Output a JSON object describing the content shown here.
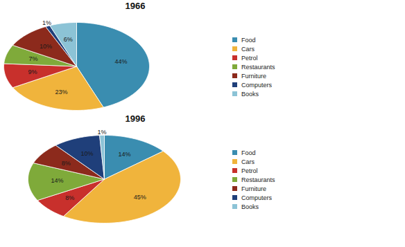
{
  "chart_data": [
    {
      "type": "pie",
      "title": "1966",
      "categories": [
        "Food",
        "Cars",
        "Petrol",
        "Restaurants",
        "Furniture",
        "Computers",
        "Books"
      ],
      "values": [
        44,
        23,
        9,
        7,
        10,
        1,
        6
      ],
      "value_labels": [
        "44%",
        "23%",
        "9%",
        "7%",
        "10%",
        "1%",
        "6%"
      ],
      "colors": [
        "#3A8DB0",
        "#F0B43C",
        "#C8302C",
        "#7FAA3A",
        "#8C2A1C",
        "#1F3F7A",
        "#8CC3D6"
      ],
      "data_labels": true,
      "legend": "right"
    },
    {
      "type": "pie",
      "title": "1996",
      "categories": [
        "Food",
        "Cars",
        "Petrol",
        "Restaurants",
        "Furniture",
        "Computers",
        "Books"
      ],
      "values": [
        14,
        45,
        8,
        14,
        8,
        10,
        1
      ],
      "value_labels": [
        "14%",
        "45%",
        "8%",
        "14%",
        "8%",
        "10%",
        "1%"
      ],
      "colors": [
        "#3A8DB0",
        "#F0B43C",
        "#C8302C",
        "#7FAA3A",
        "#8C2A1C",
        "#1F3F7A",
        "#8CC3D6"
      ],
      "data_labels": true,
      "legend": "right"
    }
  ]
}
